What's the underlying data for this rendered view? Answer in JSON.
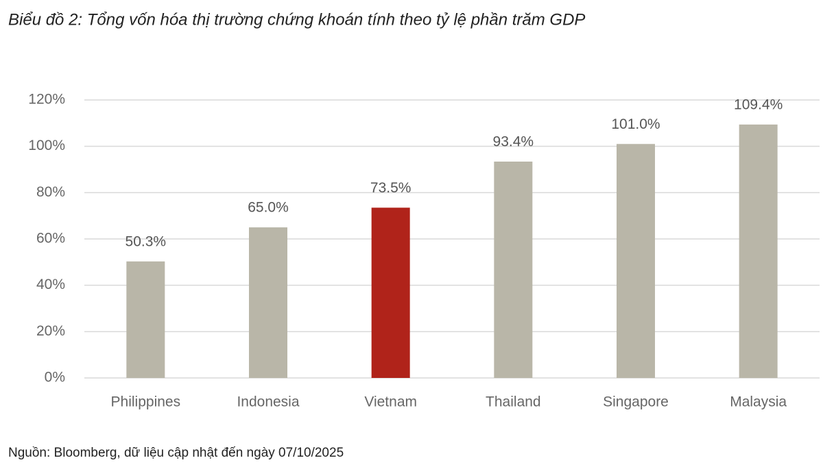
{
  "chart_data": {
    "type": "bar",
    "title": "Biểu đồ 2: Tổng vốn hóa thị trường chứng khoán tính theo tỷ lệ phần trăm GDP",
    "categories": [
      "Philippines",
      "Indonesia",
      "Vietnam",
      "Thailand",
      "Singapore",
      "Malaysia"
    ],
    "values": [
      50.3,
      65.0,
      73.5,
      93.4,
      101.0,
      109.4
    ],
    "value_labels": [
      "50.3%",
      "65.0%",
      "73.5%",
      "93.4%",
      "101.0%",
      "109.4%"
    ],
    "colors": [
      "#b9b6a8",
      "#b9b6a8",
      "#b0231a",
      "#b9b6a8",
      "#b9b6a8",
      "#b9b6a8"
    ],
    "ylim": [
      0,
      120
    ],
    "yticks": [
      {
        "value": 0,
        "label": "0%"
      },
      {
        "value": 20,
        "label": "20%"
      },
      {
        "value": 40,
        "label": "40%"
      },
      {
        "value": 60,
        "label": "60%"
      },
      {
        "value": 80,
        "label": "80%"
      },
      {
        "value": 100,
        "label": "100%"
      },
      {
        "value": 120,
        "label": "120%"
      }
    ],
    "grid": true,
    "source": "Nguồn: Bloomberg, dữ liệu cập nhật đến ngày 07/10/2025"
  }
}
